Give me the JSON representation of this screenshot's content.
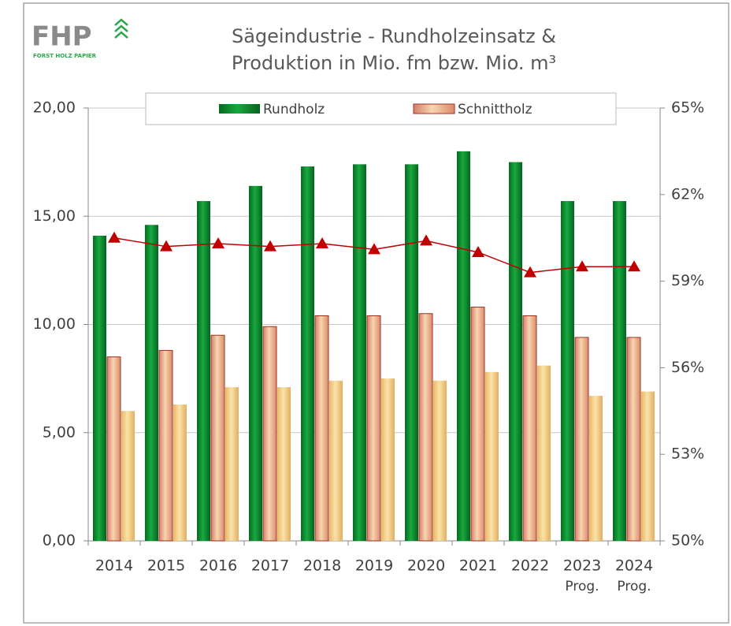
{
  "logo": {
    "text": "FHP",
    "subtitle": "FORST HOLZ PAPIER"
  },
  "chart_data": {
    "type": "bar",
    "title": [
      "Sägeindustrie - Rundholzeinsatz &",
      "Produktion in Mio. fm bzw. Mio. m³"
    ],
    "categories": [
      "2014",
      "2015",
      "2016",
      "2017",
      "2018",
      "2019",
      "2020",
      "2021",
      "2022",
      "2023",
      "2024"
    ],
    "category_notes": [
      null,
      null,
      null,
      null,
      null,
      null,
      null,
      null,
      null,
      "Prog.",
      "Prog."
    ],
    "series": [
      {
        "name": "Rundholz",
        "color": "#0a8a2e",
        "values": [
          14.1,
          14.6,
          15.7,
          16.4,
          17.3,
          17.4,
          17.4,
          18.0,
          17.5,
          15.7,
          15.7
        ]
      },
      {
        "name": "Schnittholz",
        "color": "#e8a07a",
        "values": [
          8.5,
          8.8,
          9.5,
          9.9,
          10.4,
          10.4,
          10.5,
          10.8,
          10.4,
          9.4,
          9.4
        ]
      },
      {
        "color": "#f2c878",
        "values": [
          6.0,
          6.3,
          7.1,
          7.1,
          7.4,
          7.5,
          7.4,
          7.8,
          8.1,
          6.7,
          6.9
        ]
      },
      {
        "type": "line",
        "axis": "y2",
        "color": "#c00000",
        "values": [
          60.5,
          60.2,
          60.3,
          60.2,
          60.3,
          60.1,
          60.4,
          60.0,
          59.3,
          59.5,
          59.5
        ]
      }
    ],
    "ylim": [
      0,
      20
    ],
    "yticks": [
      {
        "value": 0,
        "label": "0,00"
      },
      {
        "value": 5,
        "label": "5,00"
      },
      {
        "value": 10,
        "label": "10,00"
      },
      {
        "value": 15,
        "label": "15,00"
      },
      {
        "value": 20,
        "label": "20,00"
      }
    ],
    "y2lim": [
      50,
      65
    ],
    "y2ticks": [
      {
        "value": 50,
        "label": "50%"
      },
      {
        "value": 53,
        "label": "53%"
      },
      {
        "value": 56,
        "label": "56%"
      },
      {
        "value": 59,
        "label": "59%"
      },
      {
        "value": 62,
        "label": "62%"
      },
      {
        "value": 65,
        "label": "65%"
      }
    ],
    "grid": true,
    "legend": "top"
  }
}
